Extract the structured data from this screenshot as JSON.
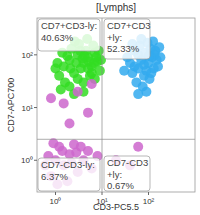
{
  "chart_data": {
    "type": "scatter",
    "title": "[Lymphs]",
    "x_label": "CD3-PC5.5",
    "y_label": "CD7-APC700",
    "log": true,
    "xlim": [
      0.4,
      1000
    ],
    "ylim": [
      0.25,
      500
    ],
    "xticks": [
      {
        "value": 1,
        "label": "10⁰"
      },
      {
        "value": 10,
        "label": "10¹"
      },
      {
        "value": 100,
        "label": "10²"
      }
    ],
    "yticks": [
      {
        "value": 1,
        "label": "10⁰"
      },
      {
        "value": 10,
        "label": "10¹"
      },
      {
        "value": 100,
        "label": "10²"
      }
    ],
    "gates": {
      "x": 10,
      "y": 2.5
    },
    "quadrants": {
      "names": [
        "CD7+CD3-ly:",
        "CD7+CD3+ly:",
        "CD7-CD3-ly:",
        "CD7-CD3+ly:"
      ],
      "values": [
        40.63,
        52.33,
        6.37,
        0.67
      ],
      "value_labels": [
        "40.63%",
        "52.33%",
        "6.37%",
        "0.67%"
      ]
    },
    "series": [
      {
        "color": "#33dd22",
        "x": [
          1.5,
          2,
          3,
          4,
          5,
          2.5,
          3.5,
          6,
          1.2,
          8,
          4.5,
          2.2,
          7,
          1.8,
          3,
          5.5,
          9,
          1.1,
          6.5,
          2.8,
          4,
          3.2,
          7.5,
          1.4,
          5,
          2,
          8.5,
          3.8,
          6,
          1,
          2.6,
          4.8,
          9.5,
          1.6,
          5.2,
          3.4,
          7,
          2.1,
          4.2,
          6.8,
          2.5,
          4,
          1.3
        ],
        "values": [
          60,
          80,
          100,
          70,
          90,
          45,
          55,
          60,
          40,
          75,
          120,
          130,
          110,
          95,
          35,
          40,
          50,
          70,
          150,
          70,
          30,
          160,
          90,
          110,
          55,
          25,
          120,
          85,
          45,
          55,
          180,
          200,
          80,
          30,
          75,
          120,
          35,
          55,
          95,
          70,
          18,
          20,
          22
        ]
      },
      {
        "color": "#33aaee",
        "x": [
          50,
          70,
          90,
          60,
          100,
          120,
          80,
          45,
          110,
          65,
          130,
          55,
          85,
          150,
          40,
          75,
          95,
          140,
          60,
          105,
          35,
          160,
          70,
          125,
          50,
          90,
          115,
          80,
          45,
          135,
          170,
          100,
          60,
          30,
          180
        ],
        "values": [
          60,
          80,
          50,
          100,
          70,
          90,
          40,
          45,
          130,
          150,
          55,
          30,
          110,
          80,
          70,
          25,
          170,
          120,
          55,
          35,
          90,
          60,
          200,
          180,
          120,
          20,
          45,
          65,
          160,
          100,
          140,
          95,
          18,
          50,
          90
        ]
      },
      {
        "color": "#cc66cc",
        "x": [
          1,
          1.5,
          2,
          0.8,
          3,
          1.2,
          2.5,
          4,
          0.7,
          1.8,
          5,
          1.1,
          3.5,
          6,
          0.9,
          2.2,
          8,
          1.4,
          0.6,
          2.8,
          3,
          1.5,
          5,
          2,
          0.8,
          6,
          20,
          40,
          60
        ],
        "values": [
          1,
          0.8,
          1.3,
          0.5,
          0.6,
          1.8,
          2,
          1,
          1.2,
          0.4,
          1.5,
          0.35,
          1.8,
          0.7,
          2.1,
          0.9,
          1.2,
          1.5,
          0.8,
          1.4,
          20,
          12,
          8,
          5,
          15,
          28,
          1,
          0.8,
          1.8
        ]
      }
    ]
  }
}
